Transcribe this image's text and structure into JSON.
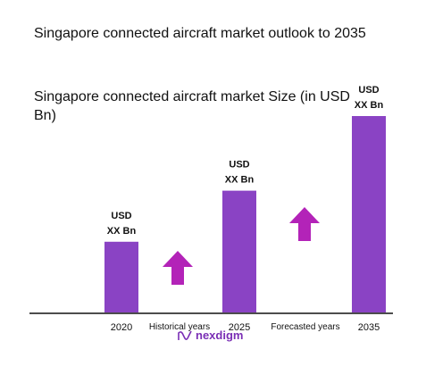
{
  "title": "Singapore connected aircraft market outlook to 2035",
  "subtitle": "Singapore connected aircraft market Size (in USD Bn)",
  "brand": {
    "name": "nexdigm",
    "color": "#7a2fb5"
  },
  "colors": {
    "bar": "#8a43c4",
    "arrow": "#b323b8",
    "axis": "#111111"
  },
  "chart_data": {
    "type": "bar",
    "categories": [
      "2020",
      "2025",
      "2035"
    ],
    "relative_heights": [
      0.36,
      0.62,
      1.0
    ],
    "bar_labels": [
      [
        "USD",
        "XX Bn"
      ],
      [
        "USD",
        "XX Bn"
      ],
      [
        "USD",
        "XX Bn"
      ]
    ],
    "period_labels": [
      "Historical years",
      "Forecasted years"
    ],
    "arrows": [
      "up",
      "up"
    ]
  }
}
